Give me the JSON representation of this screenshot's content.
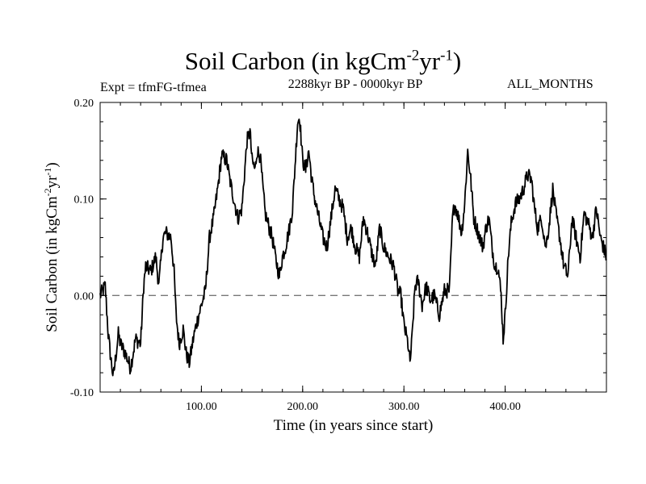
{
  "header": {
    "title_main": "Soil Carbon (in kgCm",
    "title_sup1": "-2",
    "title_mid": "yr",
    "title_sup2": "-1",
    "title_end": ")",
    "expt": "Expt = tfmFG-tfmea",
    "period": "2288kyr BP - 0000kyr BP",
    "months": "ALL_MONTHS"
  },
  "chart_data": {
    "type": "line",
    "title": "Soil Carbon (in kgCm-2yr-1)",
    "xlabel": "Time (in years since start)",
    "ylabel": "Soil Carbon (in kgCm-2yr-1)",
    "xlim": [
      0,
      500
    ],
    "ylim": [
      -0.1,
      0.2
    ],
    "x_ticks": [
      100,
      200,
      300,
      400
    ],
    "x_tick_labels": [
      "100.00",
      "200.00",
      "300.00",
      "400.00"
    ],
    "y_ticks": [
      -0.1,
      0.0,
      0.1,
      0.2
    ],
    "y_tick_labels": [
      "-0.10",
      "0.00",
      "0.10",
      "0.20"
    ],
    "reference_line": {
      "y": 0.0,
      "style": "dashed"
    },
    "series": [
      {
        "name": "Soil Carbon",
        "color": "#000000",
        "x": [
          0,
          5,
          8,
          10,
          13,
          18,
          20,
          25,
          30,
          35,
          40,
          43,
          45,
          50,
          55,
          58,
          62,
          65,
          70,
          73,
          75,
          78,
          82,
          85,
          88,
          92,
          95,
          100,
          104,
          108,
          112,
          116,
          120,
          125,
          128,
          132,
          136,
          140,
          145,
          148,
          150,
          153,
          155,
          158,
          160,
          163,
          167,
          170,
          173,
          177,
          180,
          183,
          187,
          190,
          195,
          197,
          200,
          203,
          206,
          209,
          212,
          216,
          220,
          224,
          228,
          232,
          236,
          240,
          244,
          248,
          252,
          256,
          260,
          264,
          268,
          272,
          276,
          280,
          285,
          290,
          294,
          297,
          300,
          304,
          306,
          308,
          311,
          314,
          318,
          322,
          326,
          330,
          335,
          340,
          345,
          348,
          350,
          353,
          357,
          360,
          363,
          366,
          369,
          372,
          375,
          378,
          381,
          384,
          387,
          390,
          393,
          396,
          398,
          400,
          403,
          406,
          410,
          414,
          418,
          422,
          426,
          429,
          432,
          436,
          440,
          443,
          447,
          450,
          454,
          458,
          462,
          466,
          470,
          474,
          478,
          482,
          486,
          490,
          494,
          497,
          500
        ],
        "y": [
          0.0,
          0.01,
          -0.04,
          -0.06,
          -0.085,
          -0.04,
          -0.05,
          -0.06,
          -0.075,
          -0.045,
          -0.05,
          0.01,
          0.03,
          0.025,
          0.04,
          0.01,
          0.06,
          0.065,
          0.06,
          0.025,
          -0.02,
          -0.05,
          -0.035,
          -0.06,
          -0.07,
          -0.045,
          -0.03,
          -0.01,
          0.005,
          0.06,
          0.08,
          0.11,
          0.145,
          0.14,
          0.12,
          0.1,
          0.08,
          0.09,
          0.16,
          0.17,
          0.14,
          0.13,
          0.15,
          0.145,
          0.12,
          0.085,
          0.07,
          0.06,
          0.04,
          0.02,
          0.04,
          0.05,
          0.07,
          0.09,
          0.18,
          0.185,
          0.14,
          0.13,
          0.15,
          0.12,
          0.1,
          0.08,
          0.06,
          0.05,
          0.08,
          0.11,
          0.1,
          0.09,
          0.06,
          0.07,
          0.05,
          0.04,
          0.08,
          0.065,
          0.045,
          0.03,
          0.07,
          0.05,
          0.04,
          0.03,
          0.005,
          0.0,
          -0.03,
          -0.05,
          -0.07,
          -0.045,
          0.01,
          0.015,
          -0.01,
          0.01,
          -0.005,
          0.0,
          -0.02,
          0.005,
          0.005,
          0.08,
          0.095,
          0.085,
          0.065,
          0.095,
          0.15,
          0.12,
          0.08,
          0.07,
          0.06,
          0.05,
          0.07,
          0.08,
          0.05,
          0.03,
          0.03,
          0.0,
          -0.045,
          -0.02,
          0.04,
          0.075,
          0.095,
          0.1,
          0.11,
          0.125,
          0.12,
          0.09,
          0.07,
          0.08,
          0.05,
          0.07,
          0.11,
          0.085,
          0.06,
          0.03,
          0.02,
          0.08,
          0.06,
          0.04,
          0.085,
          0.075,
          0.06,
          0.09,
          0.06,
          0.05,
          0.04
        ]
      }
    ]
  }
}
